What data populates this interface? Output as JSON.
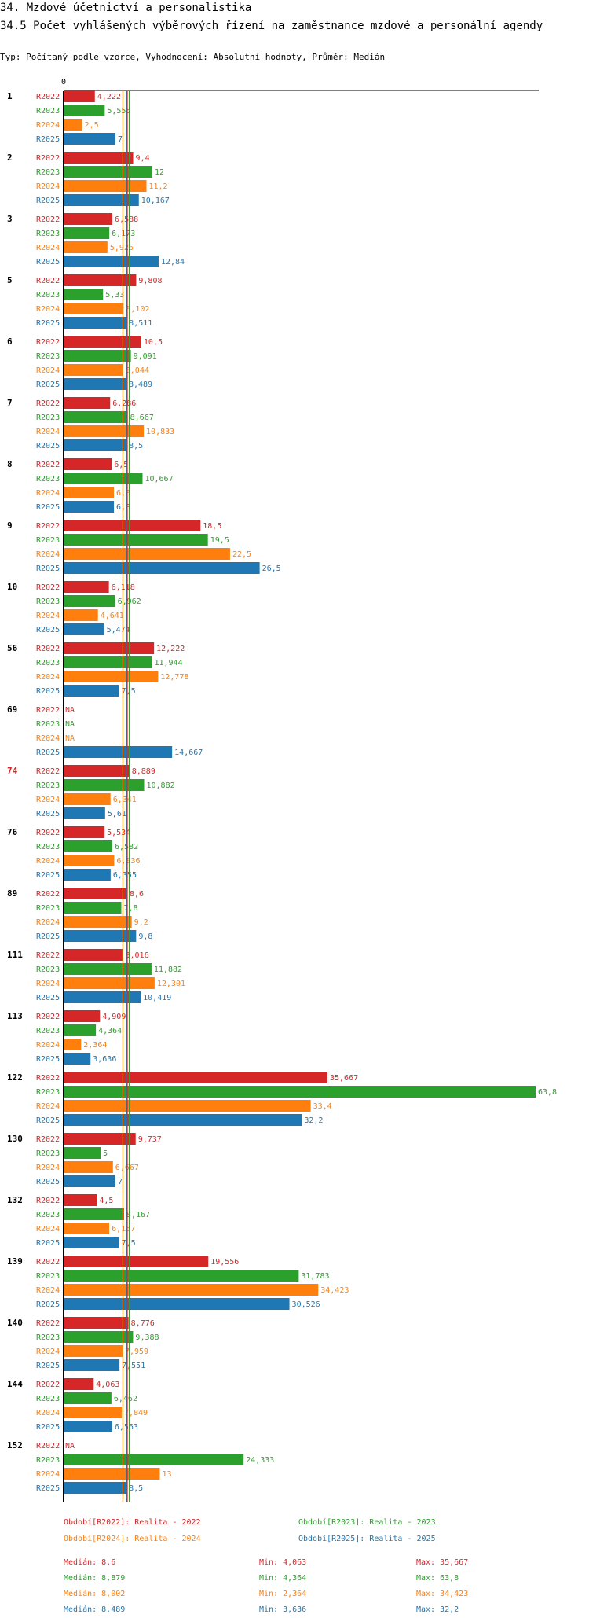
{
  "title_main": "34. Mzdové účetnictví a personalistika",
  "title_sub": "34.5 Počet vyhlášených výběrových řízení na zaměstnance mzdové a personální agendy",
  "chart_type_line": "Typ: Počítaný podle vzorce, Vyhodnocení: Absolutní hodnoty, Průměr: Medián",
  "colors": {
    "R2022": "#d62728",
    "R2023": "#2ca02c",
    "R2024": "#ff7f0e",
    "R2025": "#1f77b4"
  },
  "chart_data": {
    "type": "bar",
    "orientation": "horizontal",
    "axis_zero_label": "0",
    "xlim": [
      0,
      63.8
    ],
    "series_names": [
      "R2022",
      "R2023",
      "R2024",
      "R2025"
    ],
    "highlight_group": "74",
    "groups": [
      {
        "label": "1",
        "values": [
          "4,222",
          "5,556",
          "2,5",
          "7"
        ]
      },
      {
        "label": "2",
        "values": [
          "9,4",
          "12",
          "11,2",
          "10,167"
        ]
      },
      {
        "label": "3",
        "values": [
          "6,588",
          "6,173",
          "5,926",
          "12,84"
        ]
      },
      {
        "label": "5",
        "values": [
          "9,808",
          "5,33",
          "8,102",
          "8,511"
        ]
      },
      {
        "label": "6",
        "values": [
          "10,5",
          "9,091",
          "8,044",
          "8,489"
        ]
      },
      {
        "label": "7",
        "values": [
          "6,286",
          "8,667",
          "10,833",
          "8,5"
        ]
      },
      {
        "label": "8",
        "values": [
          "6,5",
          "10,667",
          "6,8",
          "6,8"
        ]
      },
      {
        "label": "9",
        "values": [
          "18,5",
          "19,5",
          "22,5",
          "26,5"
        ]
      },
      {
        "label": "10",
        "values": [
          "6,118",
          "6,962",
          "4,641",
          "5,474"
        ]
      },
      {
        "label": "56",
        "values": [
          "12,222",
          "11,944",
          "12,778",
          "7,5"
        ]
      },
      {
        "label": "69",
        "values": [
          "NA",
          "NA",
          "NA",
          "14,667"
        ]
      },
      {
        "label": "74",
        "values": [
          "8,889",
          "10,882",
          "6,341",
          "5,61"
        ]
      },
      {
        "label": "76",
        "values": [
          "5,534",
          "6,582",
          "6,836",
          "6,355"
        ]
      },
      {
        "label": "89",
        "values": [
          "8,6",
          "7,8",
          "9,2",
          "9,8"
        ]
      },
      {
        "label": "111",
        "values": [
          "8,016",
          "11,882",
          "12,301",
          "10,419"
        ]
      },
      {
        "label": "113",
        "values": [
          "4,909",
          "4,364",
          "2,364",
          "3,636"
        ]
      },
      {
        "label": "122",
        "values": [
          "35,667",
          "63,8",
          "33,4",
          "32,2"
        ]
      },
      {
        "label": "130",
        "values": [
          "9,737",
          "5",
          "6,667",
          "7"
        ]
      },
      {
        "label": "132",
        "values": [
          "4,5",
          "8,167",
          "6,167",
          "7,5"
        ]
      },
      {
        "label": "139",
        "values": [
          "19,556",
          "31,783",
          "34,423",
          "30,526"
        ]
      },
      {
        "label": "140",
        "values": [
          "8,776",
          "9,388",
          "7,959",
          "7,551"
        ]
      },
      {
        "label": "144",
        "values": [
          "4,063",
          "6,462",
          "7,849",
          "6,563"
        ]
      },
      {
        "label": "152",
        "values": [
          "NA",
          "24,333",
          "13",
          "8,5"
        ]
      }
    ],
    "medians": [
      8.6,
      8.879,
      8.002,
      8.489
    ],
    "legend": [
      "Období[R2022]: Realita - 2022",
      "Období[R2023]: Realita - 2023",
      "Období[R2024]: Realita - 2024",
      "Období[R2025]: Realita - 2025"
    ],
    "stats": [
      {
        "median": "Medián: 8,6",
        "min": "Min: 4,063",
        "max": "Max: 35,667"
      },
      {
        "median": "Medián: 8,879",
        "min": "Min: 4,364",
        "max": "Max: 63,8"
      },
      {
        "median": "Medián: 8,002",
        "min": "Min: 2,364",
        "max": "Max: 34,423"
      },
      {
        "median": "Medián: 8,489",
        "min": "Min: 3,636",
        "max": "Max: 32,2"
      }
    ]
  }
}
